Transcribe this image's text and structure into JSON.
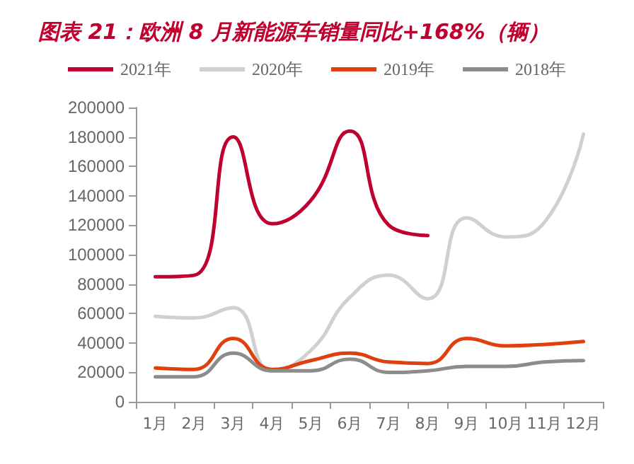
{
  "chart_data": {
    "type": "line",
    "title": "图表 21：欧洲 8 月新能源车销量同比+168%（辆）",
    "categories": [
      "1月",
      "2月",
      "3月",
      "4月",
      "5月",
      "6月",
      "7月",
      "8月",
      "9月",
      "10月",
      "11月",
      "12月"
    ],
    "series": [
      {
        "name": "2021年",
        "color": "#c0002e",
        "values": [
          85000,
          86000,
          180000,
          121000,
          137000,
          184000,
          120000,
          113000,
          null,
          null,
          null,
          null
        ]
      },
      {
        "name": "2020年",
        "color": "#d0d0d0",
        "values": [
          58000,
          57000,
          64000,
          21000,
          35000,
          71000,
          86000,
          70000,
          125000,
          112000,
          122000,
          182000
        ]
      },
      {
        "name": "2019年",
        "color": "#e0400e",
        "values": [
          23000,
          22000,
          43000,
          22000,
          28000,
          33000,
          27000,
          26000,
          43000,
          38000,
          39000,
          41000
        ]
      },
      {
        "name": "2018年",
        "color": "#8c8c8c",
        "values": [
          17000,
          17000,
          33000,
          21000,
          21000,
          29000,
          20000,
          21000,
          24000,
          24000,
          27000,
          28000
        ]
      }
    ],
    "ylim": [
      0,
      200000
    ],
    "yticks": [
      0,
      20000,
      40000,
      60000,
      80000,
      100000,
      120000,
      140000,
      160000,
      180000,
      200000
    ],
    "grid": false,
    "legend": "top",
    "marker": "none",
    "line_style": "solid"
  }
}
